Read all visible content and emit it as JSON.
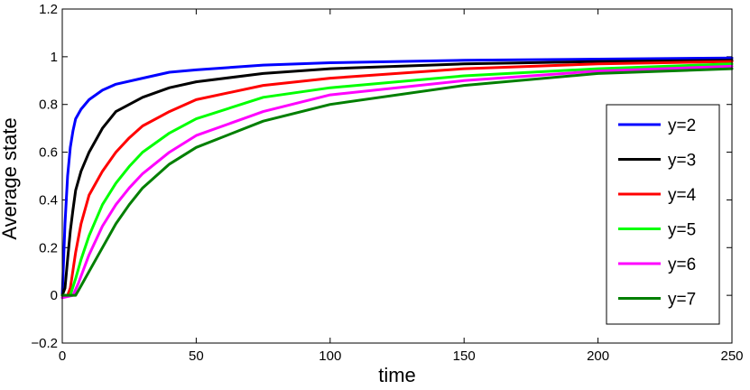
{
  "chart_data": {
    "type": "line",
    "title": "",
    "xlabel": "time",
    "ylabel": "Average state",
    "xlim": [
      0,
      250
    ],
    "ylim": [
      -0.2,
      1.2
    ],
    "xticks": [
      0,
      50,
      100,
      150,
      200,
      250
    ],
    "yticks": [
      -0.2,
      0,
      0.2,
      0.4,
      0.6,
      0.8,
      1,
      1.2
    ],
    "xtick_labels": [
      "0",
      "50",
      "100",
      "150",
      "200",
      "250"
    ],
    "ytick_labels": [
      "−0.2",
      "0",
      "0.2",
      "0.4",
      "0.6",
      "0.8",
      "1",
      "1.2"
    ],
    "grid": false,
    "legend_position": "right",
    "series": [
      {
        "name": "y=2",
        "color": "#0000ff",
        "x": [
          0,
          1,
          2,
          3,
          4,
          5,
          7,
          10,
          15,
          20,
          30,
          40,
          50,
          75,
          100,
          150,
          200,
          250
        ],
        "y": [
          0,
          0.3,
          0.5,
          0.62,
          0.69,
          0.74,
          0.78,
          0.82,
          0.86,
          0.885,
          0.91,
          0.935,
          0.945,
          0.965,
          0.975,
          0.985,
          0.99,
          0.995
        ]
      },
      {
        "name": "y=3",
        "color": "#000000",
        "x": [
          0,
          1,
          2,
          3,
          4,
          5,
          7,
          10,
          15,
          20,
          30,
          40,
          50,
          75,
          100,
          150,
          200,
          250
        ],
        "y": [
          0,
          0.03,
          0.15,
          0.27,
          0.36,
          0.44,
          0.52,
          0.6,
          0.7,
          0.77,
          0.83,
          0.87,
          0.895,
          0.93,
          0.95,
          0.97,
          0.98,
          0.985
        ]
      },
      {
        "name": "y=4",
        "color": "#ff0000",
        "x": [
          0,
          2,
          3,
          5,
          7,
          10,
          15,
          20,
          25,
          30,
          40,
          50,
          75,
          100,
          150,
          200,
          250
        ],
        "y": [
          0,
          0.0,
          0.03,
          0.18,
          0.3,
          0.42,
          0.52,
          0.6,
          0.66,
          0.71,
          0.77,
          0.82,
          0.88,
          0.91,
          0.95,
          0.97,
          0.98
        ]
      },
      {
        "name": "y=5",
        "color": "#00ff00",
        "x": [
          0,
          3,
          5,
          7,
          10,
          15,
          20,
          25,
          30,
          40,
          50,
          75,
          100,
          150,
          200,
          250
        ],
        "y": [
          0,
          0.0,
          0.07,
          0.15,
          0.25,
          0.38,
          0.47,
          0.54,
          0.6,
          0.68,
          0.74,
          0.83,
          0.87,
          0.92,
          0.95,
          0.97
        ]
      },
      {
        "name": "y=6",
        "color": "#ff00ff",
        "x": [
          0,
          4,
          6,
          8,
          10,
          15,
          20,
          25,
          30,
          40,
          50,
          75,
          100,
          150,
          200,
          250
        ],
        "y": [
          -0.01,
          0.0,
          0.05,
          0.11,
          0.17,
          0.29,
          0.38,
          0.45,
          0.51,
          0.6,
          0.67,
          0.77,
          0.84,
          0.9,
          0.94,
          0.96
        ]
      },
      {
        "name": "y=7",
        "color": "#007f00",
        "x": [
          0,
          5,
          7,
          10,
          15,
          20,
          25,
          30,
          40,
          50,
          75,
          100,
          150,
          200,
          250
        ],
        "y": [
          0,
          0.0,
          0.04,
          0.1,
          0.2,
          0.3,
          0.38,
          0.45,
          0.55,
          0.62,
          0.73,
          0.8,
          0.88,
          0.93,
          0.95
        ]
      }
    ]
  }
}
